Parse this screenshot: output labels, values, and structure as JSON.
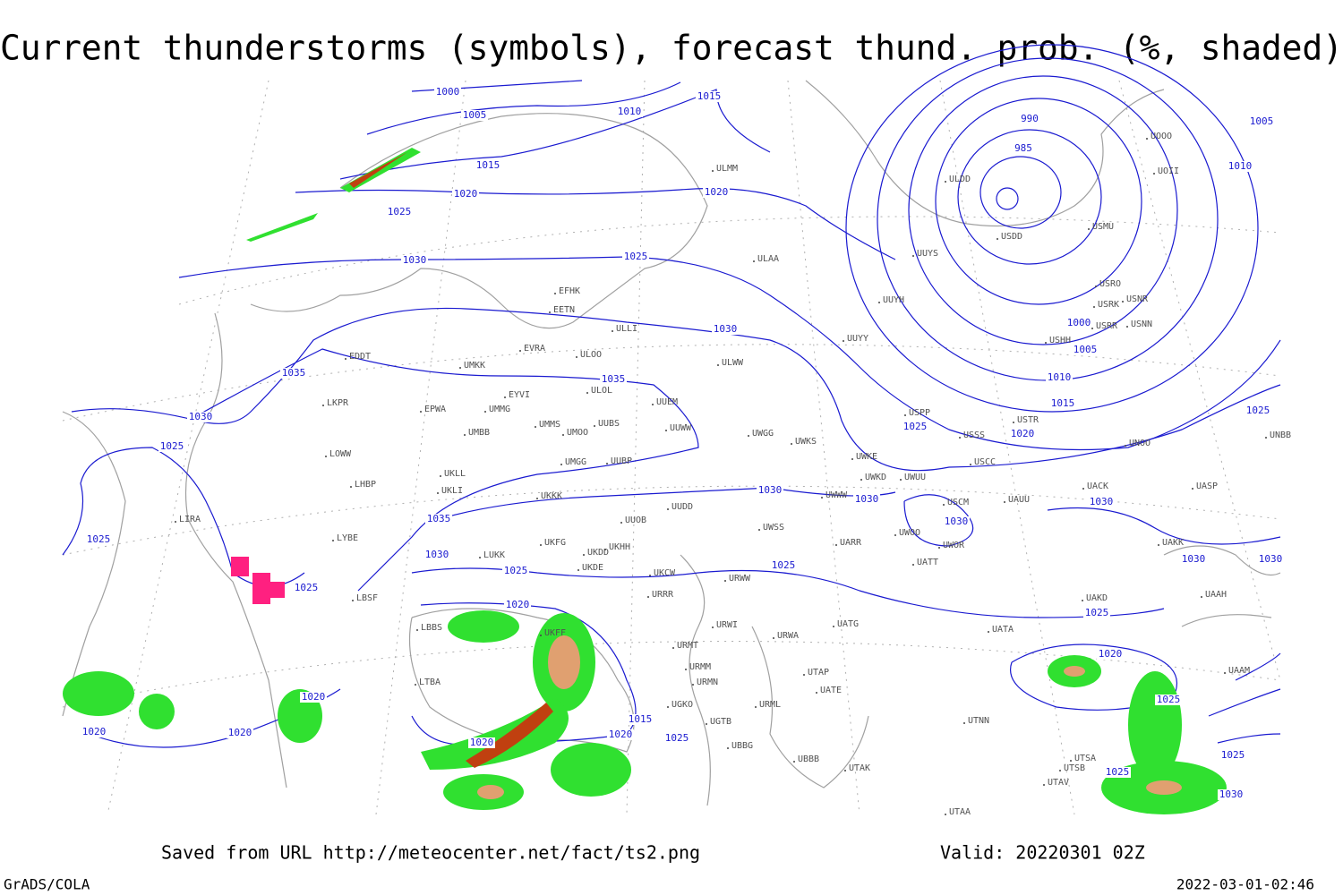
{
  "title": "Current thunderstorms (symbols), forecast thund. prob. (%, shaded)",
  "footer": {
    "saved": "Saved from URL http://meteocenter.net/fact/ts2.png",
    "valid": "Valid: 20220301 02Z",
    "credit": "GrADS/COLA",
    "timestamp": "2022-03-01-02:46"
  },
  "isobar_labels": [
    1000,
    1005,
    1010,
    1015,
    1015,
    1020,
    1020,
    1025,
    1025,
    1030,
    1030,
    1035,
    1035,
    1030,
    1025,
    1025,
    1035,
    1030,
    1025,
    1025,
    1020,
    1020,
    1020,
    1020,
    1020,
    1015,
    1020,
    1025,
    1030,
    1030,
    1030,
    1025,
    1025,
    1025,
    1030,
    1030,
    1030,
    1020,
    1025,
    1025,
    1025,
    1030,
    990,
    985,
    1000,
    1005,
    1010,
    1015,
    1020,
    1005,
    1010,
    1025
  ],
  "stations": [
    "ULMM",
    "ULAA",
    "EFHK",
    "EETN",
    "ULLI",
    "EVRA",
    "ULOO",
    "EDDT",
    "UMKK",
    "EYVI",
    "ULOL",
    "UUEM",
    "EPWA",
    "UMMG",
    "LKPR",
    "UMMS",
    "UMOO",
    "UUBS",
    "UUWW",
    "UMBB",
    "UWGG",
    "UWKS",
    "LOWW",
    "UMGG",
    "UUBP",
    "UKLL",
    "UKLI",
    "LHBP",
    "UKKK",
    "UUDD",
    "UUOB",
    "LIRA",
    "LYBE",
    "UKHH",
    "UKDD",
    "UKFG",
    "LUKK",
    "UKDE",
    "UKCW",
    "URWW",
    "UWSS",
    "UUYY",
    "ULWW",
    "UUYH",
    "UUYS",
    "ULDD",
    "USDD",
    "USMU",
    "UOOO",
    "UOII",
    "USRO",
    "USRK",
    "USNR",
    "USRR",
    "USNN",
    "USHH",
    "USPP",
    "USTR",
    "USSS",
    "UNOO",
    "UNBB",
    "USCC",
    "UWKE",
    "UWKD",
    "UWUU",
    "UWWW",
    "USCM",
    "UAUU",
    "UACK",
    "UASP",
    "UARR",
    "UWOO",
    "UWOR",
    "UATT",
    "UAKK",
    "UAKD",
    "UAAH",
    "UATA",
    "UATG",
    "URWA",
    "URRR",
    "URWI",
    "URMT",
    "URMM",
    "URMN",
    "UGKO",
    "UGTB",
    "UBBG",
    "UBBB",
    "UTAK",
    "UTAP",
    "UATE",
    "URML",
    "UTNN",
    "UTSA",
    "UTSB",
    "UTAV",
    "UTAA",
    "UAAM",
    "LBBS",
    "LTBA",
    "LBSF",
    "UKFF"
  ]
}
